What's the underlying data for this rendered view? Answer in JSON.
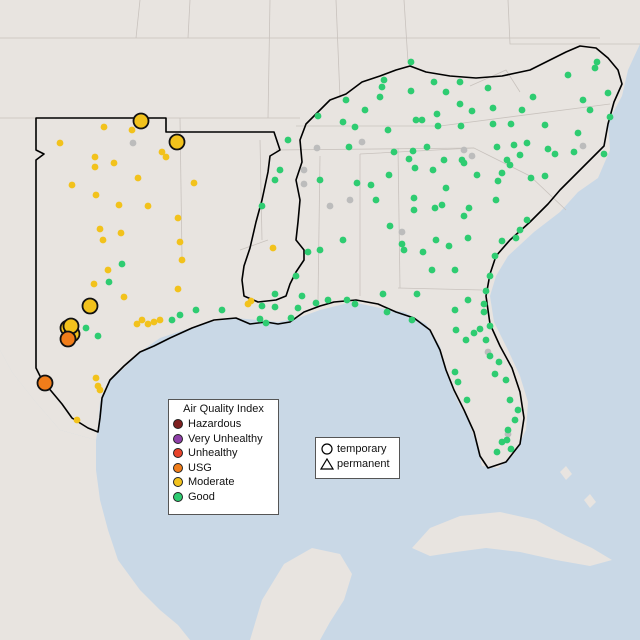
{
  "legend": {
    "title": "Air Quality Index",
    "categories": [
      {
        "label": "Hazardous",
        "color": "#7e1f1f"
      },
      {
        "label": "Very Unhealthy",
        "color": "#8f3fa8"
      },
      {
        "label": "Unhealthy",
        "color": "#e8432a"
      },
      {
        "label": "USG",
        "color": "#f07d1a"
      },
      {
        "label": "Moderate",
        "color": "#f2c21c"
      },
      {
        "label": "Good",
        "color": "#2ecc71"
      }
    ]
  },
  "shape_legend": {
    "temporary": "temporary",
    "permanent": "permanent"
  },
  "colors": {
    "water": "#c9d8e6",
    "land": "#e8e4e0",
    "outline": "#000000",
    "no_data": "#bcbcbc"
  }
}
